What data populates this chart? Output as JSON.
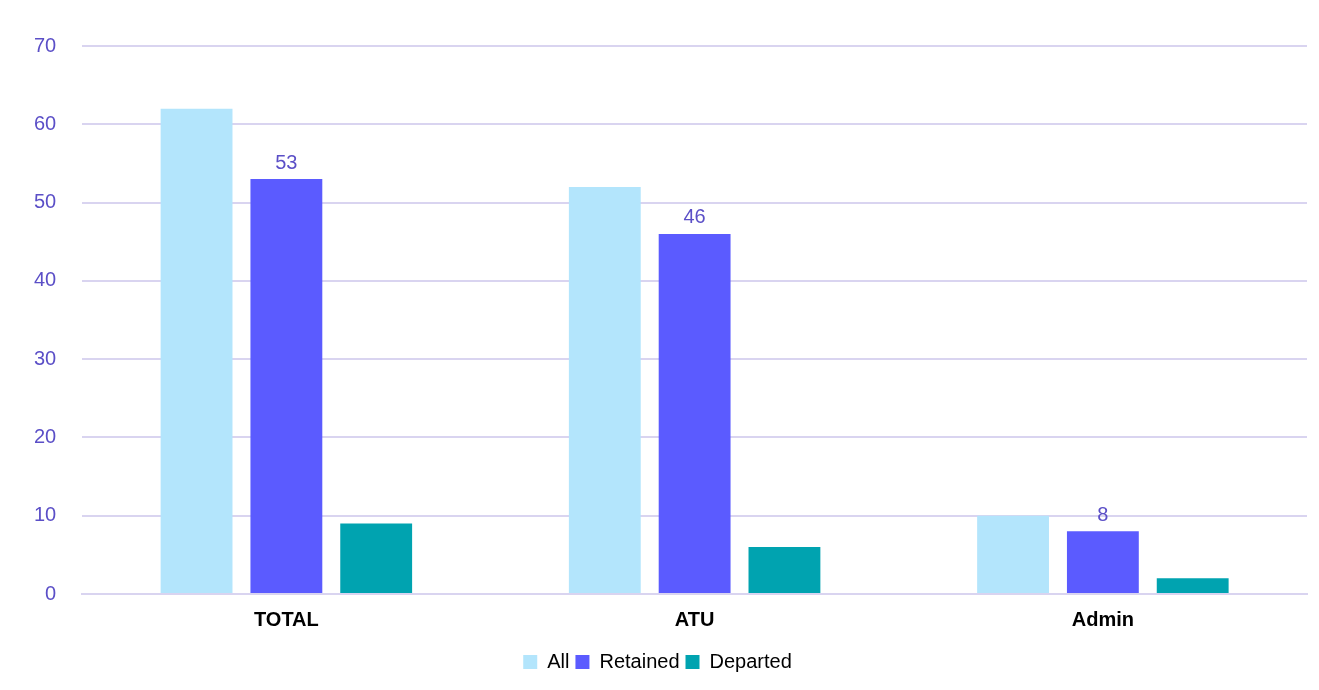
{
  "chart_data": {
    "type": "bar",
    "categories": [
      "TOTAL",
      "ATU",
      "Admin"
    ],
    "series": [
      {
        "name": "All",
        "color": "#b3e5fc",
        "values": [
          62,
          52,
          10
        ]
      },
      {
        "name": "Retained",
        "color": "#5b5bff",
        "values": [
          53,
          46,
          8
        ],
        "value_labels": [
          "53",
          "46",
          "8"
        ]
      },
      {
        "name": "Departed",
        "color": "#00a3b0",
        "values": [
          9,
          6,
          2
        ]
      }
    ],
    "ylim": [
      0,
      70
    ],
    "yticks": [
      0,
      10,
      20,
      30,
      40,
      50,
      60,
      70
    ],
    "grid": "y",
    "legend": "bottom"
  }
}
